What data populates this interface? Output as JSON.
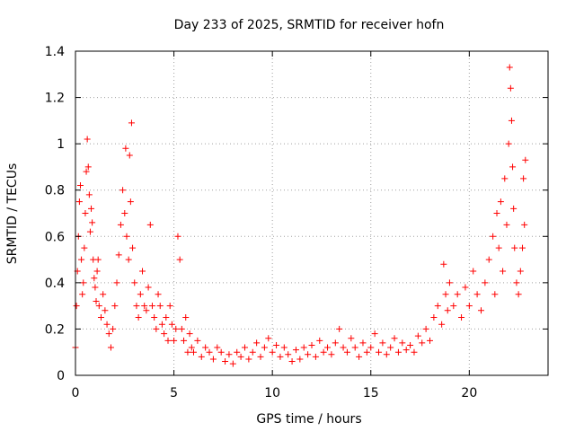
{
  "chart_data": {
    "type": "scatter",
    "title": "Day 233 of 2025, SRMTID for receiver hofn",
    "xlabel": "GPS time / hours",
    "ylabel": "SRMTID / TECUs",
    "xlim": [
      0,
      24
    ],
    "ylim": [
      0,
      1.4
    ],
    "xticks": [
      0,
      5,
      10,
      15,
      20
    ],
    "yticks": [
      0,
      0.2,
      0.4,
      0.6,
      0.8,
      1,
      1.2,
      1.4
    ],
    "xtick_labels": [
      "0",
      "5",
      "10",
      "15",
      "20"
    ],
    "ytick_labels": [
      "0",
      "0.2",
      "0.4",
      "0.6",
      "0.8",
      "1",
      "1.2",
      "1.4"
    ],
    "grid": true,
    "marker": "plus",
    "color": "#ff0000",
    "series": [
      {
        "name": "SRMTID",
        "points": [
          [
            0.0,
            0.12
          ],
          [
            0.05,
            0.3
          ],
          [
            0.1,
            0.45
          ],
          [
            0.15,
            0.6
          ],
          [
            0.2,
            0.75
          ],
          [
            0.25,
            0.82
          ],
          [
            0.3,
            0.5
          ],
          [
            0.35,
            0.35
          ],
          [
            0.4,
            0.4
          ],
          [
            0.45,
            0.55
          ],
          [
            0.5,
            0.7
          ],
          [
            0.55,
            0.88
          ],
          [
            0.6,
            1.02
          ],
          [
            0.65,
            0.9
          ],
          [
            0.7,
            0.78
          ],
          [
            0.75,
            0.62
          ],
          [
            0.8,
            0.72
          ],
          [
            0.85,
            0.66
          ],
          [
            0.9,
            0.5
          ],
          [
            0.95,
            0.42
          ],
          [
            1.0,
            0.38
          ],
          [
            1.05,
            0.32
          ],
          [
            1.1,
            0.45
          ],
          [
            1.15,
            0.5
          ],
          [
            1.2,
            0.3
          ],
          [
            1.3,
            0.25
          ],
          [
            1.4,
            0.35
          ],
          [
            1.5,
            0.28
          ],
          [
            1.6,
            0.22
          ],
          [
            1.7,
            0.18
          ],
          [
            1.8,
            0.12
          ],
          [
            1.9,
            0.2
          ],
          [
            2.0,
            0.3
          ],
          [
            2.1,
            0.4
          ],
          [
            2.2,
            0.52
          ],
          [
            2.3,
            0.65
          ],
          [
            2.4,
            0.8
          ],
          [
            2.5,
            0.7
          ],
          [
            2.55,
            0.98
          ],
          [
            2.6,
            0.6
          ],
          [
            2.7,
            0.5
          ],
          [
            2.75,
            0.95
          ],
          [
            2.8,
            0.75
          ],
          [
            2.85,
            1.09
          ],
          [
            2.9,
            0.55
          ],
          [
            3.0,
            0.4
          ],
          [
            3.1,
            0.3
          ],
          [
            3.2,
            0.25
          ],
          [
            3.3,
            0.35
          ],
          [
            3.4,
            0.45
          ],
          [
            3.5,
            0.3
          ],
          [
            3.6,
            0.28
          ],
          [
            3.7,
            0.38
          ],
          [
            3.8,
            0.65
          ],
          [
            3.9,
            0.3
          ],
          [
            4.0,
            0.25
          ],
          [
            4.1,
            0.2
          ],
          [
            4.2,
            0.35
          ],
          [
            4.3,
            0.3
          ],
          [
            4.4,
            0.22
          ],
          [
            4.5,
            0.18
          ],
          [
            4.6,
            0.25
          ],
          [
            4.7,
            0.15
          ],
          [
            4.8,
            0.3
          ],
          [
            4.9,
            0.22
          ],
          [
            5.0,
            0.15
          ],
          [
            5.1,
            0.2
          ],
          [
            5.2,
            0.6
          ],
          [
            5.3,
            0.5
          ],
          [
            5.4,
            0.2
          ],
          [
            5.5,
            0.15
          ],
          [
            5.6,
            0.25
          ],
          [
            5.7,
            0.1
          ],
          [
            5.8,
            0.18
          ],
          [
            5.9,
            0.12
          ],
          [
            6.0,
            0.1
          ],
          [
            6.2,
            0.15
          ],
          [
            6.4,
            0.08
          ],
          [
            6.6,
            0.12
          ],
          [
            6.8,
            0.1
          ],
          [
            7.0,
            0.07
          ],
          [
            7.2,
            0.12
          ],
          [
            7.4,
            0.1
          ],
          [
            7.6,
            0.06
          ],
          [
            7.8,
            0.09
          ],
          [
            8.0,
            0.05
          ],
          [
            8.2,
            0.1
          ],
          [
            8.4,
            0.08
          ],
          [
            8.6,
            0.12
          ],
          [
            8.8,
            0.07
          ],
          [
            9.0,
            0.1
          ],
          [
            9.2,
            0.14
          ],
          [
            9.4,
            0.08
          ],
          [
            9.6,
            0.12
          ],
          [
            9.8,
            0.16
          ],
          [
            10.0,
            0.1
          ],
          [
            10.2,
            0.13
          ],
          [
            10.4,
            0.08
          ],
          [
            10.6,
            0.12
          ],
          [
            10.8,
            0.09
          ],
          [
            11.0,
            0.06
          ],
          [
            11.2,
            0.11
          ],
          [
            11.4,
            0.07
          ],
          [
            11.6,
            0.12
          ],
          [
            11.8,
            0.09
          ],
          [
            12.0,
            0.13
          ],
          [
            12.2,
            0.08
          ],
          [
            12.4,
            0.15
          ],
          [
            12.6,
            0.1
          ],
          [
            12.8,
            0.12
          ],
          [
            13.0,
            0.09
          ],
          [
            13.2,
            0.14
          ],
          [
            13.4,
            0.2
          ],
          [
            13.6,
            0.12
          ],
          [
            13.8,
            0.1
          ],
          [
            14.0,
            0.16
          ],
          [
            14.2,
            0.12
          ],
          [
            14.4,
            0.08
          ],
          [
            14.6,
            0.14
          ],
          [
            14.8,
            0.1
          ],
          [
            15.0,
            0.12
          ],
          [
            15.2,
            0.18
          ],
          [
            15.4,
            0.1
          ],
          [
            15.6,
            0.14
          ],
          [
            15.8,
            0.09
          ],
          [
            16.0,
            0.12
          ],
          [
            16.2,
            0.16
          ],
          [
            16.4,
            0.1
          ],
          [
            16.6,
            0.14
          ],
          [
            16.8,
            0.11
          ],
          [
            17.0,
            0.13
          ],
          [
            17.2,
            0.1
          ],
          [
            17.4,
            0.17
          ],
          [
            17.6,
            0.14
          ],
          [
            17.8,
            0.2
          ],
          [
            18.0,
            0.15
          ],
          [
            18.2,
            0.25
          ],
          [
            18.4,
            0.3
          ],
          [
            18.6,
            0.22
          ],
          [
            18.7,
            0.48
          ],
          [
            18.8,
            0.35
          ],
          [
            18.9,
            0.28
          ],
          [
            19.0,
            0.4
          ],
          [
            19.2,
            0.3
          ],
          [
            19.4,
            0.35
          ],
          [
            19.6,
            0.25
          ],
          [
            19.8,
            0.38
          ],
          [
            20.0,
            0.3
          ],
          [
            20.2,
            0.45
          ],
          [
            20.4,
            0.35
          ],
          [
            20.6,
            0.28
          ],
          [
            20.8,
            0.4
          ],
          [
            21.0,
            0.5
          ],
          [
            21.2,
            0.6
          ],
          [
            21.3,
            0.35
          ],
          [
            21.4,
            0.7
          ],
          [
            21.5,
            0.55
          ],
          [
            21.6,
            0.75
          ],
          [
            21.7,
            0.45
          ],
          [
            21.8,
            0.85
          ],
          [
            21.9,
            0.65
          ],
          [
            22.0,
            1.0
          ],
          [
            22.05,
            1.33
          ],
          [
            22.1,
            1.24
          ],
          [
            22.15,
            1.1
          ],
          [
            22.2,
            0.9
          ],
          [
            22.25,
            0.72
          ],
          [
            22.3,
            0.55
          ],
          [
            22.4,
            0.4
          ],
          [
            22.5,
            0.35
          ],
          [
            22.6,
            0.45
          ],
          [
            22.7,
            0.55
          ],
          [
            22.75,
            0.85
          ],
          [
            22.8,
            0.65
          ],
          [
            22.85,
            0.93
          ]
        ]
      }
    ]
  }
}
